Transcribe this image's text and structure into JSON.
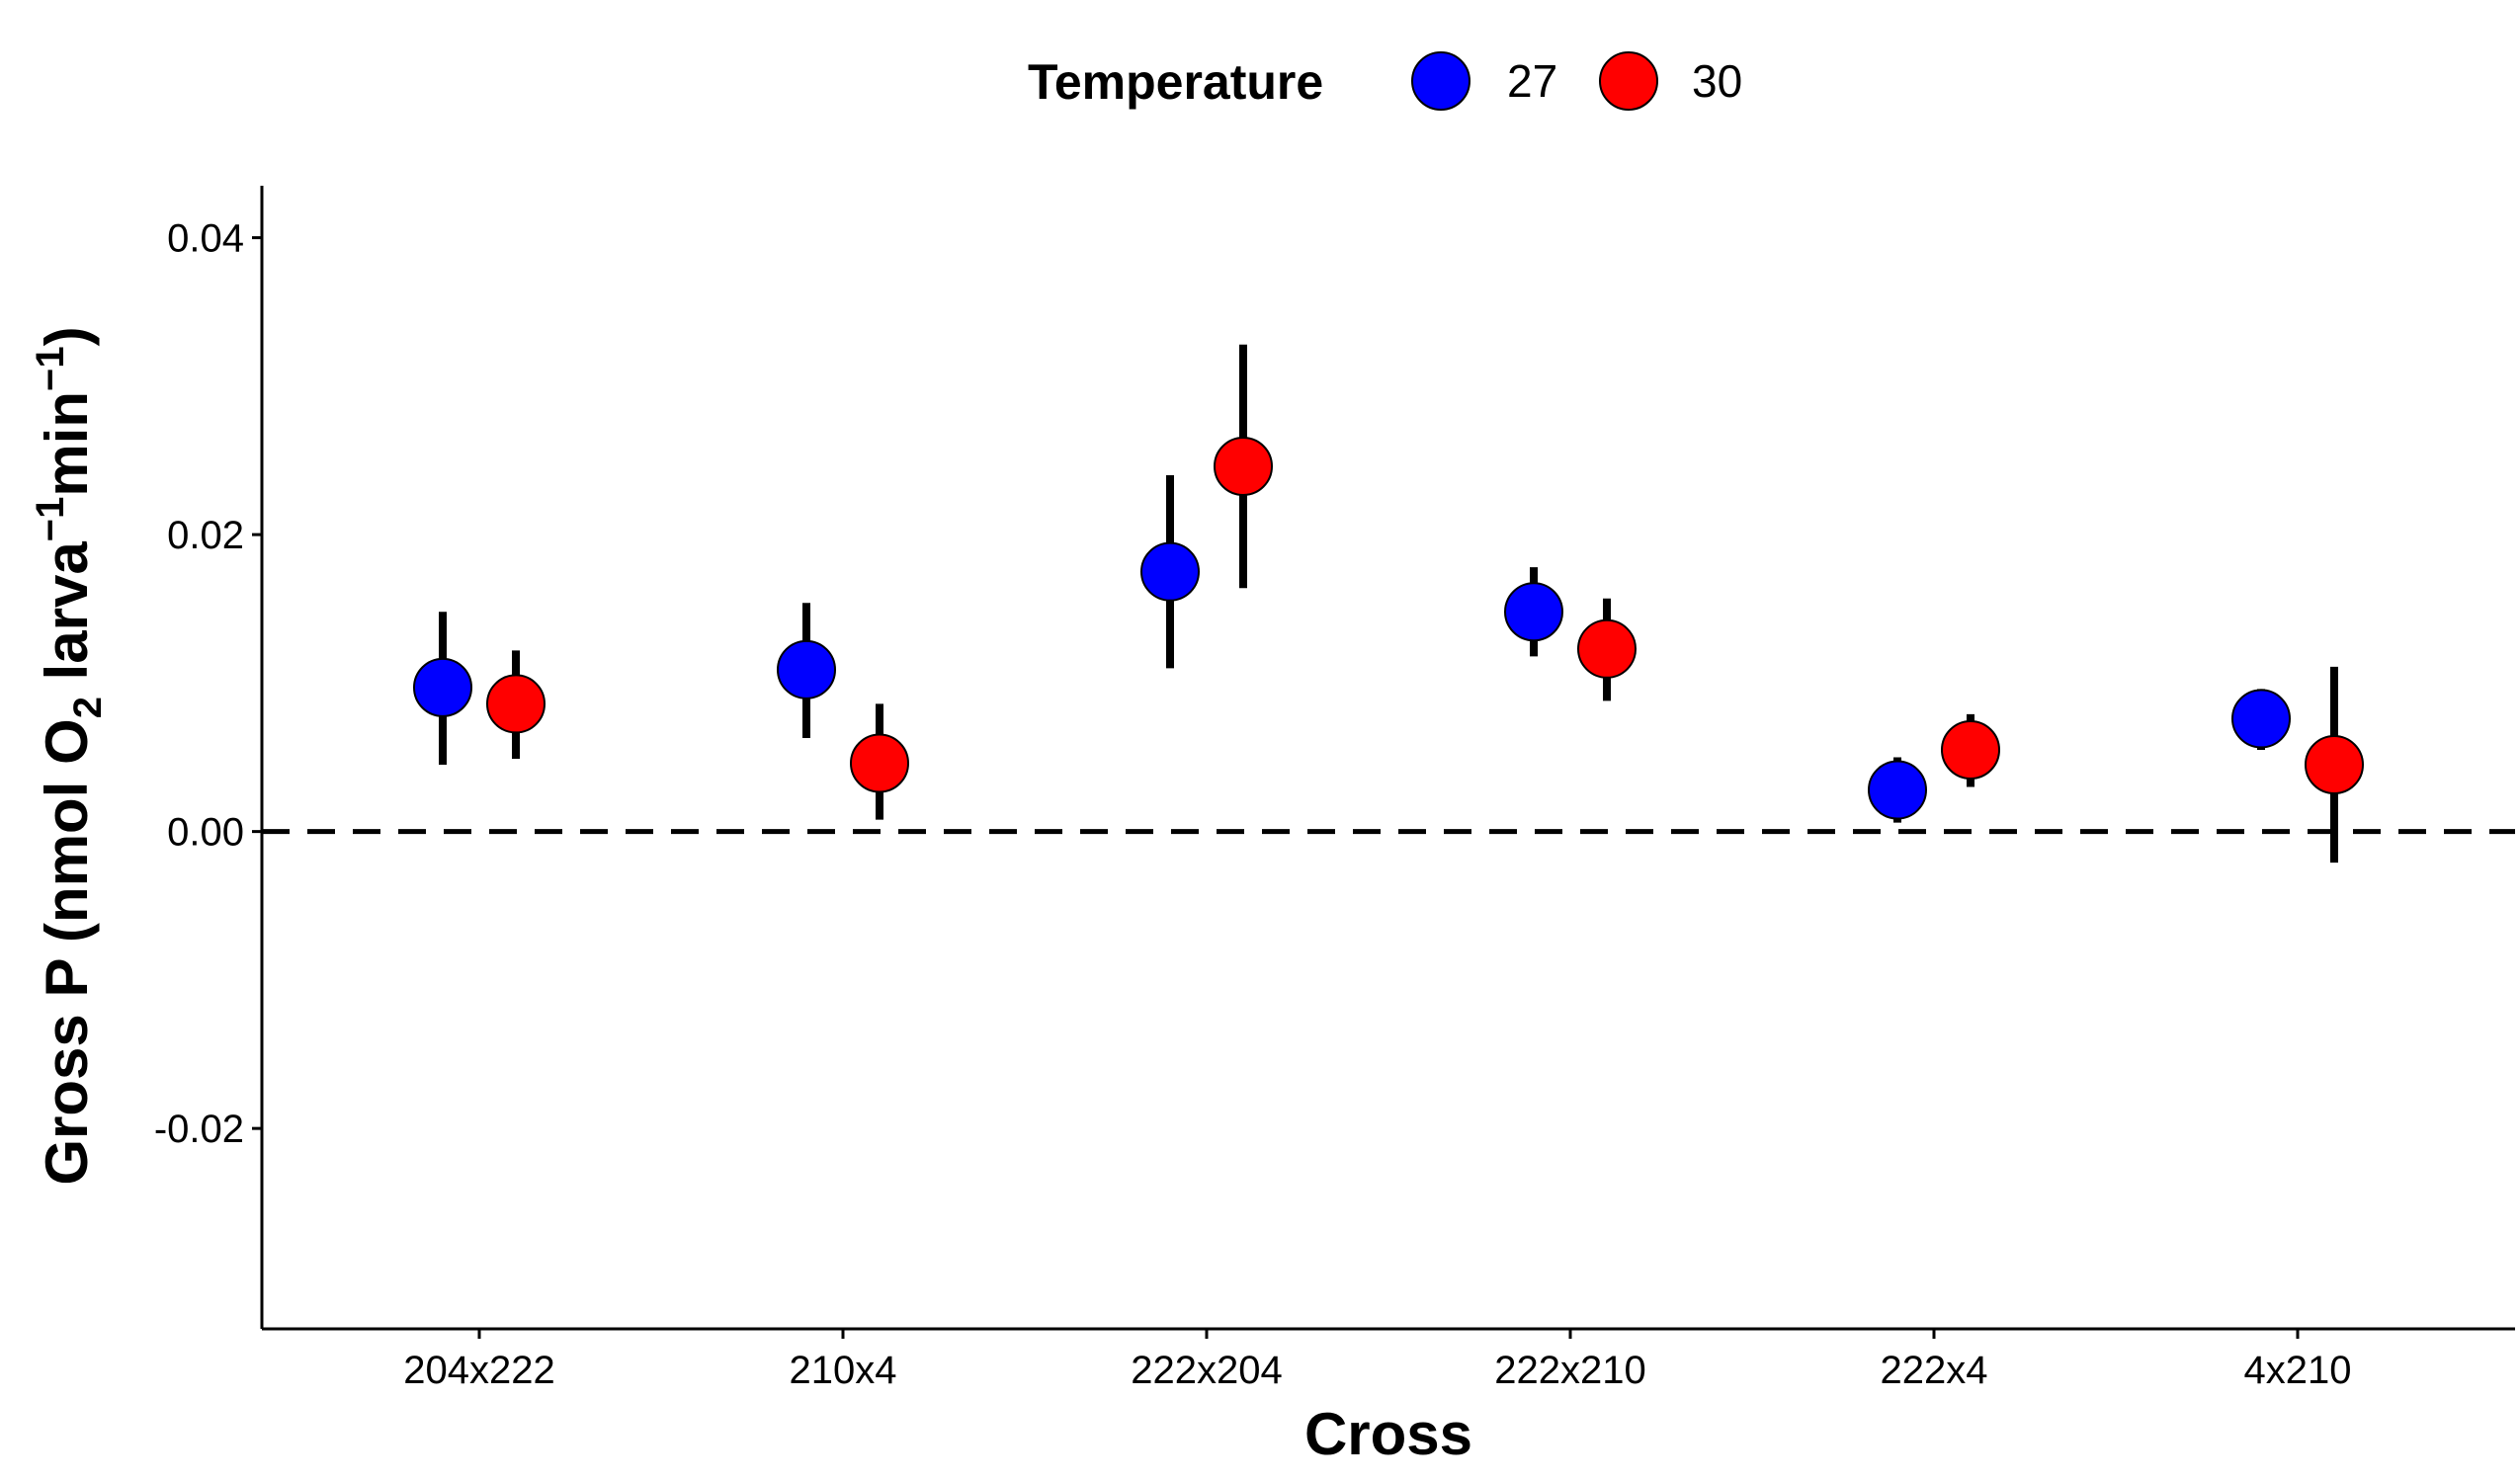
{
  "chart_data": {
    "type": "scatter",
    "xlabel": "Cross",
    "ylabel": {
      "prefix": "Gross P (nmol O",
      "sub": "2",
      "mid1": " larva",
      "sup1": "−1",
      "mid2": "min",
      "sup2": "−1",
      "suffix": ")"
    },
    "legend": {
      "title": "Temperature",
      "position": "top"
    },
    "categories": [
      "204x222",
      "210x4",
      "222x204",
      "222x210",
      "222x4",
      "4x210"
    ],
    "ylim": [
      -0.0335,
      0.0435
    ],
    "yticks": [
      -0.02,
      0.0,
      0.02,
      0.04
    ],
    "ytick_labels": [
      "-0.02",
      "0.00",
      "0.02",
      "0.04"
    ],
    "reference_line": {
      "y": 0.0,
      "style": "dashed"
    },
    "grid": false,
    "series": [
      {
        "name": "27",
        "color": "#0000ff",
        "values": [
          0.0097,
          0.0109,
          0.0175,
          0.0148,
          0.0028,
          0.0076
        ],
        "error_low": [
          0.0045,
          0.0063,
          0.011,
          0.0118,
          0.0006,
          0.0055
        ],
        "error_high": [
          0.0148,
          0.0154,
          0.024,
          0.0178,
          0.005,
          0.0096
        ]
      },
      {
        "name": "30",
        "color": "#ff0000",
        "values": [
          0.0086,
          0.0046,
          0.0246,
          0.0123,
          0.0055,
          0.0045
        ],
        "error_low": [
          0.0049,
          0.0008,
          0.0164,
          0.0088,
          0.003,
          -0.0021
        ],
        "error_high": [
          0.0122,
          0.0086,
          0.0328,
          0.0157,
          0.0079,
          0.0111
        ]
      }
    ]
  }
}
